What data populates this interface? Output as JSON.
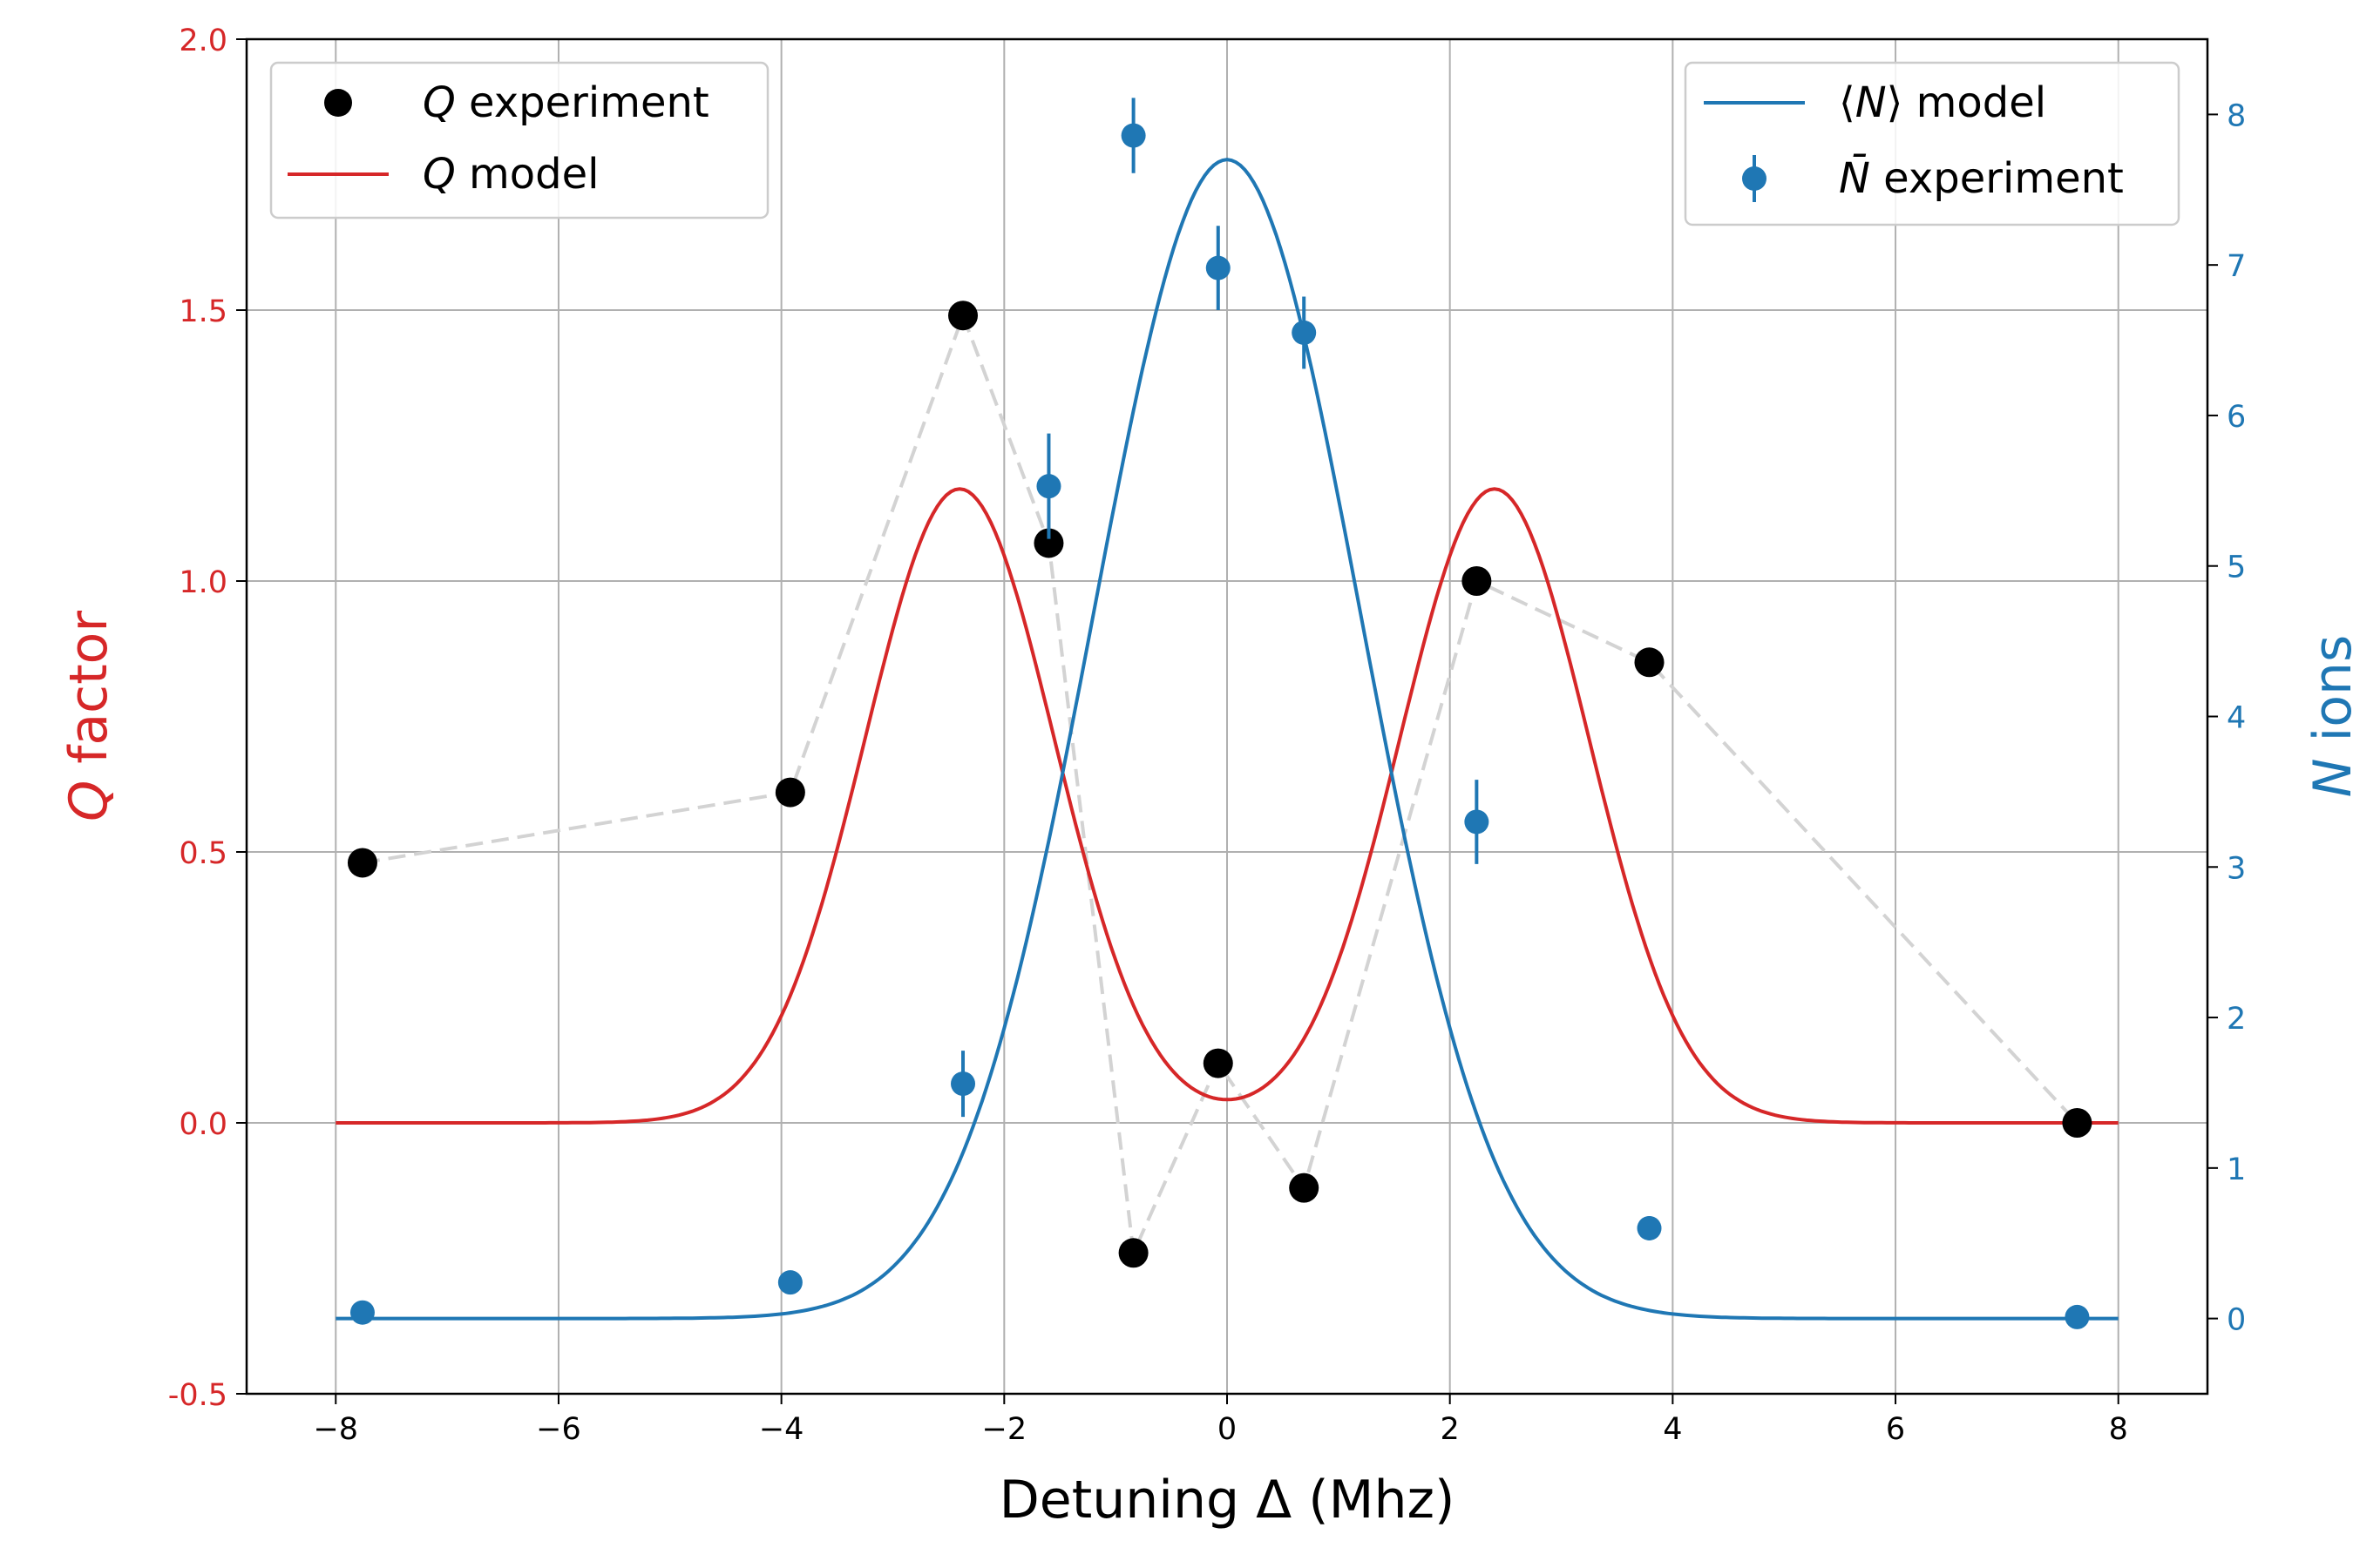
{
  "chart_data": {
    "type": "line",
    "xlabel": "Detuning Δ (Mhz)",
    "ylabel_left": {
      "pre": "Q",
      "post": " factor"
    },
    "ylabel_right": {
      "pre": "N",
      "post": " ions"
    },
    "xlim": [
      -8.8,
      8.8
    ],
    "ylim_left": [
      -0.5,
      2.0
    ],
    "ylim_right": [
      -0.5,
      8.5
    ],
    "x_ticks": [
      -8,
      -6,
      -4,
      -2,
      0,
      2,
      4,
      6,
      8
    ],
    "x_tick_labels": [
      "−8",
      "−6",
      "−4",
      "−2",
      "0",
      "2",
      "4",
      "6",
      "8"
    ],
    "y_left_ticks": [
      -0.5,
      0.0,
      0.5,
      1.0,
      1.5,
      2.0
    ],
    "y_left_tick_labels": [
      "-0.5",
      "0.0",
      "0.5",
      "1.0",
      "1.5",
      "2.0"
    ],
    "y_right_ticks": [
      0,
      1,
      2,
      3,
      4,
      5,
      6,
      7,
      8
    ],
    "y_right_tick_labels": [
      "0",
      "1",
      "2",
      "3",
      "4",
      "5",
      "6",
      "7",
      "8"
    ],
    "grid": true,
    "colors": {
      "left_axis": "#d62728",
      "right_axis": "#1f77b4",
      "q_experiment": "#000000",
      "connector": "#d3d3d3"
    },
    "q_experiment": {
      "x": [
        -7.76,
        -3.92,
        -2.37,
        -1.6,
        -0.84,
        -0.08,
        0.69,
        2.24,
        3.79,
        7.63
      ],
      "y": [
        0.48,
        0.61,
        1.49,
        1.07,
        -0.24,
        0.11,
        -0.12,
        1.0,
        0.85,
        0.0
      ]
    },
    "n_experiment": {
      "x": [
        -7.76,
        -3.92,
        -2.37,
        -1.6,
        -0.84,
        -0.08,
        0.69,
        2.24,
        3.79,
        7.63
      ],
      "y": [
        0.04,
        0.24,
        1.56,
        5.53,
        7.86,
        6.98,
        6.55,
        3.3,
        0.6,
        0.01
      ],
      "yerr": [
        0.0,
        0.0,
        0.22,
        0.35,
        0.25,
        0.28,
        0.24,
        0.28,
        0.08,
        0.0
      ]
    },
    "q_model": {
      "amplitude": 1.17,
      "center": 2.4,
      "width": 1.2,
      "baseline": 0.0,
      "x_range": [
        -8,
        8
      ]
    },
    "n_model": {
      "amplitude": 7.7,
      "width": 1.7,
      "x_range": [
        -8,
        8
      ]
    },
    "legend_left": {
      "position": "top-left",
      "entries": [
        {
          "pre": "Q",
          "post": " experiment"
        },
        {
          "pre": "Q",
          "post": " model"
        }
      ]
    },
    "legend_right": {
      "position": "top-right",
      "entries": [
        {
          "pre": "⟨",
          "mid": "N",
          "post": "⟩ model"
        },
        {
          "pre": "",
          "mid": "N̄",
          "post": " experiment"
        }
      ]
    }
  }
}
